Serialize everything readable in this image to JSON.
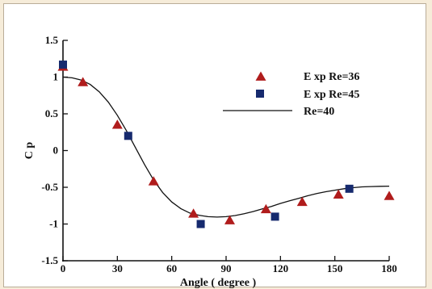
{
  "chart_data": {
    "type": "scatter",
    "xlabel": "Angle ( degree )",
    "ylabel": "C p",
    "xlim": [
      0,
      180
    ],
    "ylim": [
      -1.5,
      1.5
    ],
    "x_ticks": [
      0,
      30,
      60,
      90,
      120,
      150,
      180
    ],
    "y_ticks": [
      -1.5,
      -1,
      -0.5,
      0,
      0.5,
      1,
      1.5
    ],
    "y_tick_labels": [
      "-1.5",
      "-1",
      "-0.5",
      "0",
      "0.5",
      "1",
      "1.5"
    ],
    "grid": false,
    "legend_position": "top-right",
    "series": [
      {
        "name": "E xp Re=36",
        "marker": "triangle",
        "color": "#b01c1c",
        "points": [
          [
            0,
            1.14
          ],
          [
            11,
            0.93
          ],
          [
            30,
            0.35
          ],
          [
            50,
            -0.42
          ],
          [
            72,
            -0.86
          ],
          [
            92,
            -0.95
          ],
          [
            112,
            -0.8
          ],
          [
            132,
            -0.7
          ],
          [
            152,
            -0.6
          ],
          [
            180,
            -0.62
          ]
        ]
      },
      {
        "name": "E xp Re=45",
        "marker": "square",
        "color": "#162a6e",
        "points": [
          [
            0,
            1.17
          ],
          [
            36,
            0.2
          ],
          [
            76,
            -1.0
          ],
          [
            117,
            -0.9
          ],
          [
            158,
            -0.52
          ]
        ]
      },
      {
        "name": "Re=40",
        "marker": "line",
        "color": "#111111",
        "points": [
          [
            0,
            1.0
          ],
          [
            5,
            0.99
          ],
          [
            10,
            0.96
          ],
          [
            15,
            0.9
          ],
          [
            20,
            0.8
          ],
          [
            25,
            0.66
          ],
          [
            30,
            0.48
          ],
          [
            35,
            0.27
          ],
          [
            40,
            0.04
          ],
          [
            45,
            -0.19
          ],
          [
            50,
            -0.4
          ],
          [
            55,
            -0.57
          ],
          [
            60,
            -0.7
          ],
          [
            65,
            -0.79
          ],
          [
            70,
            -0.85
          ],
          [
            75,
            -0.88
          ],
          [
            80,
            -0.9
          ],
          [
            85,
            -0.905
          ],
          [
            90,
            -0.9
          ],
          [
            95,
            -0.885
          ],
          [
            100,
            -0.86
          ],
          [
            105,
            -0.83
          ],
          [
            110,
            -0.795
          ],
          [
            115,
            -0.76
          ],
          [
            120,
            -0.72
          ],
          [
            125,
            -0.685
          ],
          [
            130,
            -0.65
          ],
          [
            135,
            -0.615
          ],
          [
            140,
            -0.585
          ],
          [
            145,
            -0.56
          ],
          [
            150,
            -0.54
          ],
          [
            155,
            -0.52
          ],
          [
            160,
            -0.505
          ],
          [
            165,
            -0.495
          ],
          [
            170,
            -0.49
          ],
          [
            175,
            -0.487
          ],
          [
            180,
            -0.485
          ]
        ]
      }
    ]
  }
}
